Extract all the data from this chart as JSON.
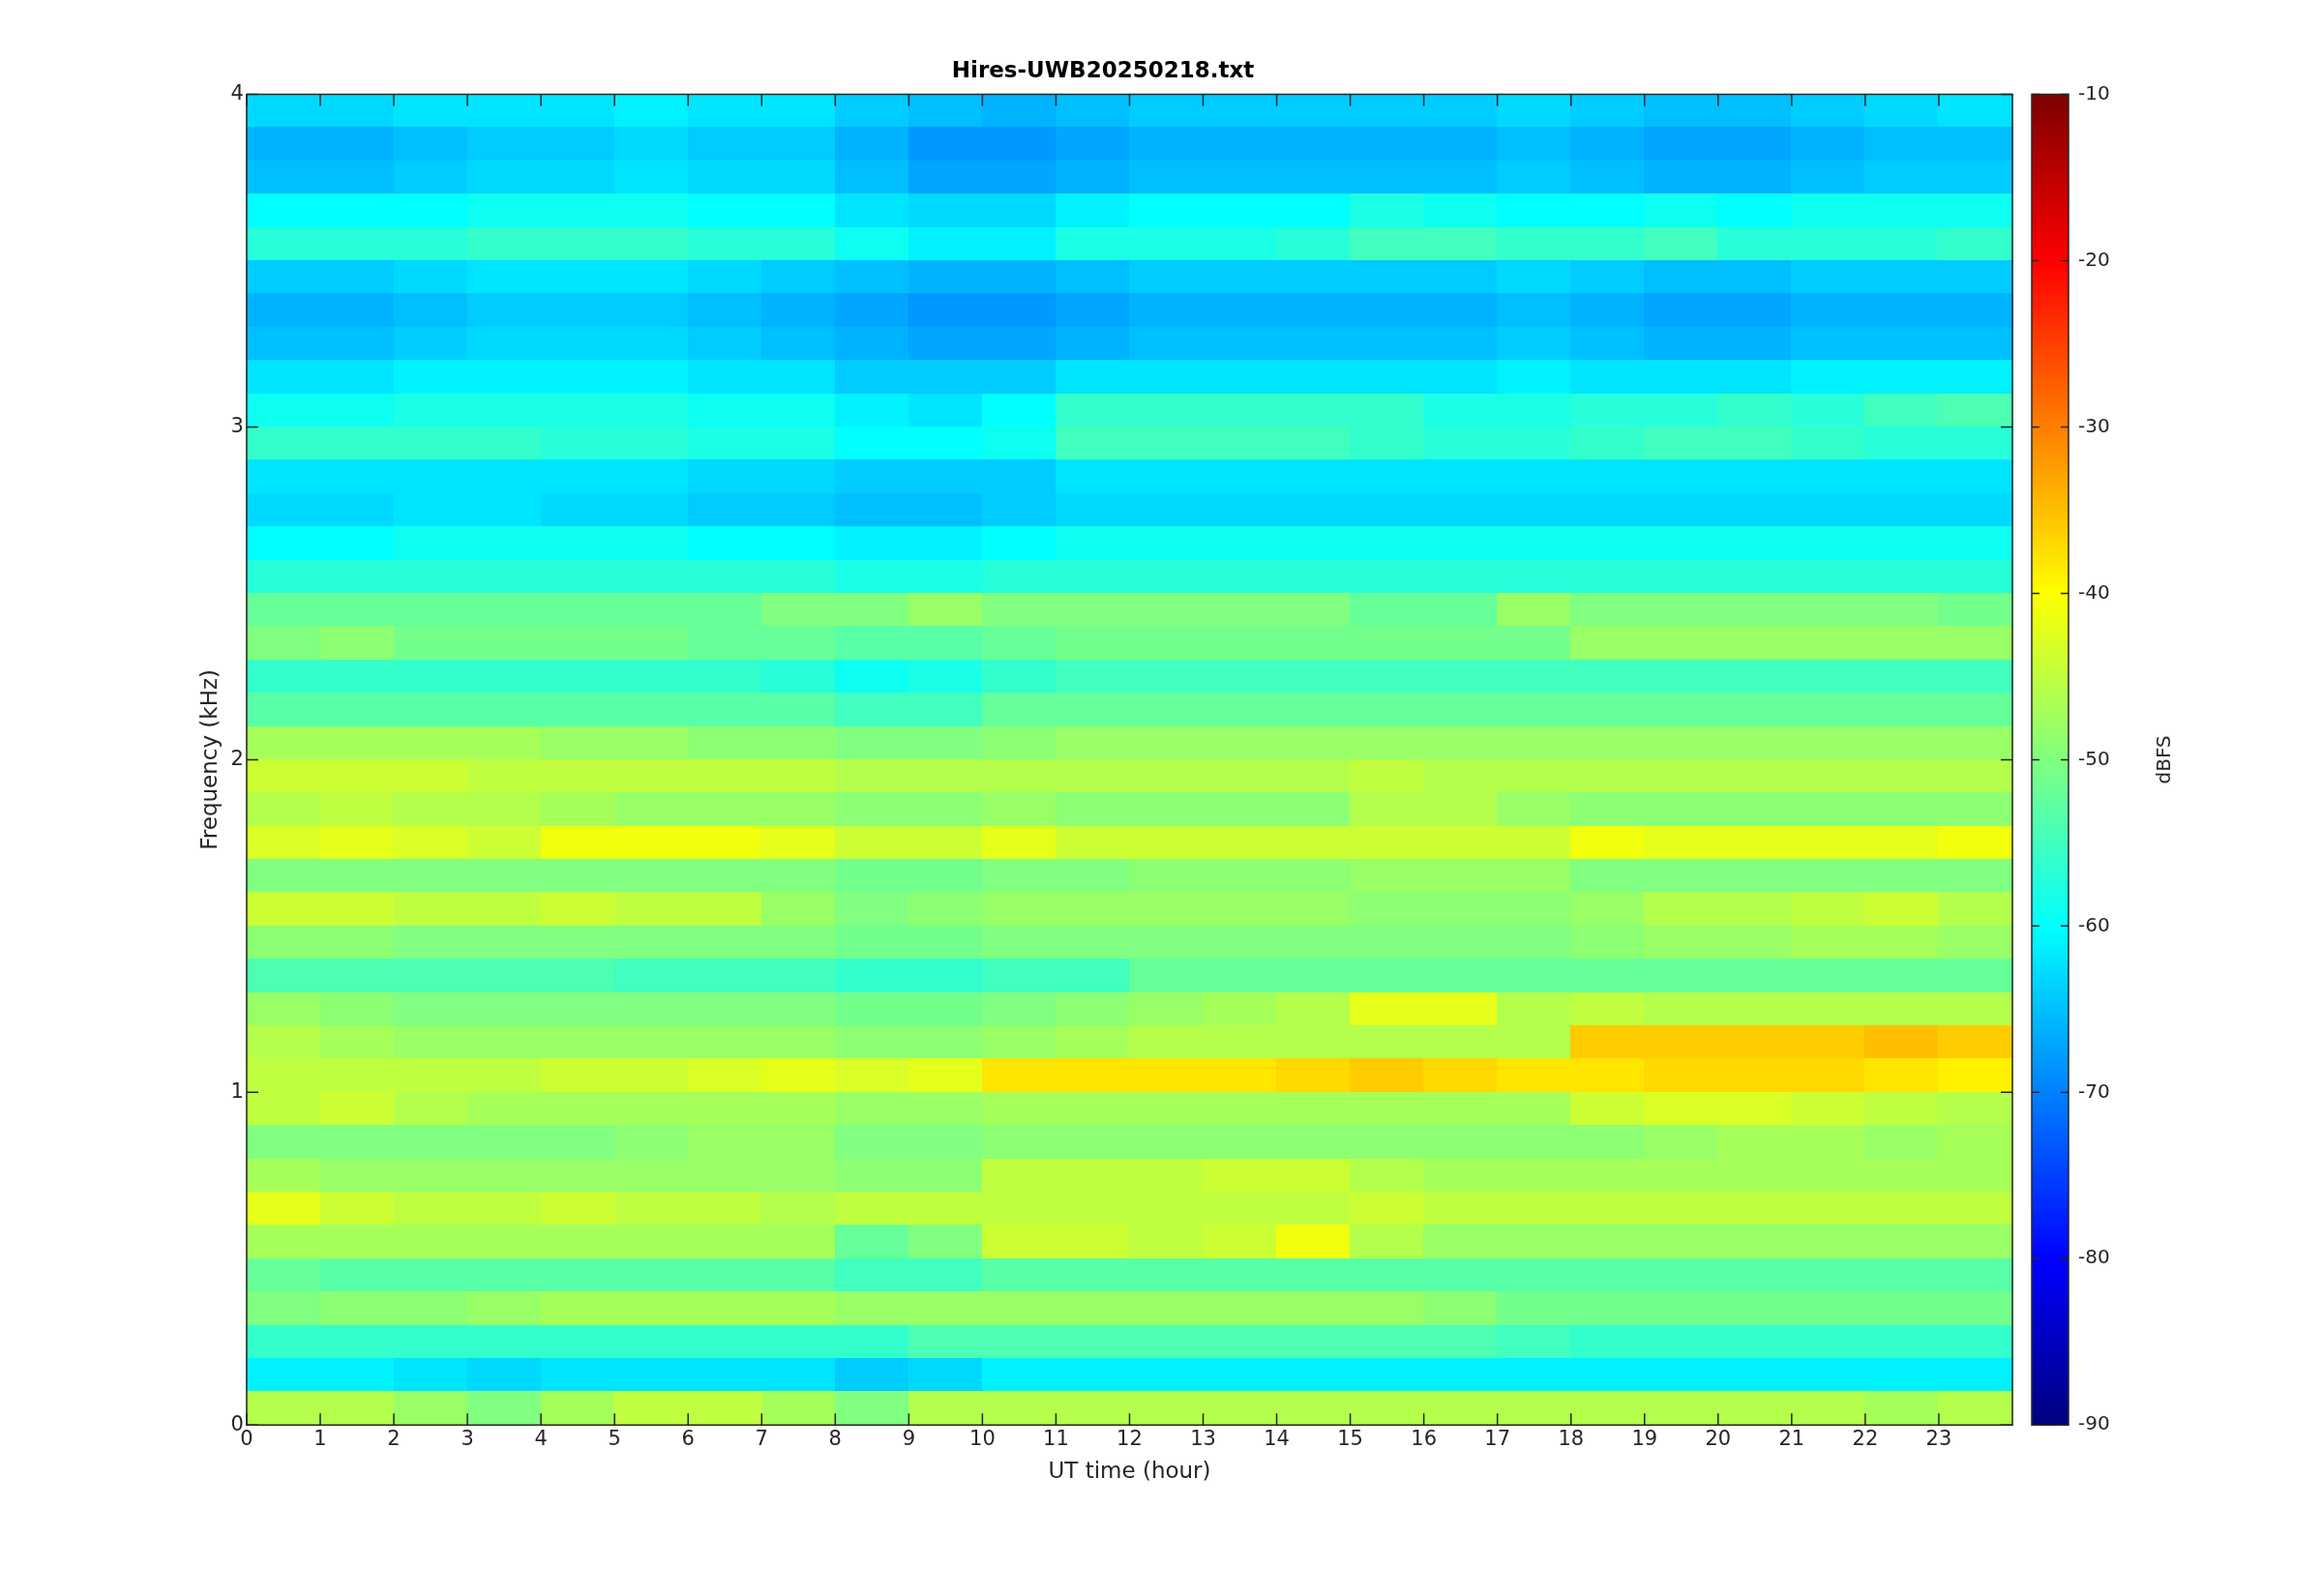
{
  "chart_data": {
    "type": "heatmap",
    "title": "Hires-UWB20250218.txt",
    "xlabel": "UT time (hour)",
    "ylabel": "Frequency (kHz)",
    "clabel": "dBFS",
    "xlim": [
      0,
      24
    ],
    "xticks": [
      0,
      1,
      2,
      3,
      4,
      5,
      6,
      7,
      8,
      9,
      10,
      11,
      12,
      13,
      14,
      15,
      16,
      17,
      18,
      19,
      20,
      21,
      22,
      23
    ],
    "ylim": [
      0,
      4
    ],
    "yticks": [
      0,
      1,
      2,
      3,
      4
    ],
    "clim": [
      -90,
      -10
    ],
    "cticks": [
      -90,
      -80,
      -70,
      -60,
      -50,
      -40,
      -30,
      -20,
      -10
    ],
    "cells": [
      [
        -63,
        -63,
        -62,
        -62,
        -62,
        -61,
        -62,
        -62,
        -64,
        -65,
        -66,
        -65,
        -64,
        -64,
        -64,
        -64,
        -64,
        -63,
        -64,
        -65,
        -65,
        -64,
        -63,
        -62
      ],
      [
        -66,
        -66,
        -65,
        -64,
        -64,
        -63,
        -64,
        -64,
        -66,
        -68,
        -68,
        -67,
        -66,
        -66,
        -66,
        -66,
        -66,
        -65,
        -66,
        -67,
        -67,
        -66,
        -65,
        -65
      ],
      [
        -65,
        -65,
        -64,
        -63,
        -63,
        -62,
        -63,
        -63,
        -65,
        -67,
        -67,
        -66,
        -65,
        -65,
        -65,
        -65,
        -65,
        -64,
        -65,
        -66,
        -66,
        -65,
        -64,
        -64
      ],
      [
        -60,
        -60,
        -60,
        -59,
        -59,
        -59,
        -60,
        -60,
        -62,
        -63,
        -63,
        -61,
        -60,
        -60,
        -60,
        -58,
        -59,
        -60,
        -60,
        -59,
        -60,
        -59,
        -59,
        -59
      ],
      [
        -57,
        -57,
        -57,
        -56,
        -56,
        -56,
        -57,
        -57,
        -59,
        -61,
        -61,
        -58,
        -58,
        -58,
        -57,
        -55,
        -55,
        -56,
        -56,
        -55,
        -57,
        -57,
        -57,
        -56
      ],
      [
        -64,
        -64,
        -63,
        -62,
        -62,
        -62,
        -63,
        -64,
        -65,
        -66,
        -66,
        -65,
        -64,
        -64,
        -64,
        -64,
        -64,
        -63,
        -64,
        -65,
        -65,
        -64,
        -64,
        -64
      ],
      [
        -66,
        -66,
        -65,
        -64,
        -64,
        -64,
        -65,
        -66,
        -67,
        -68,
        -68,
        -67,
        -66,
        -66,
        -66,
        -66,
        -66,
        -65,
        -66,
        -67,
        -67,
        -66,
        -66,
        -66
      ],
      [
        -65,
        -65,
        -64,
        -63,
        -63,
        -63,
        -64,
        -65,
        -66,
        -67,
        -67,
        -66,
        -65,
        -65,
        -65,
        -65,
        -65,
        -64,
        -65,
        -66,
        -66,
        -65,
        -65,
        -65
      ],
      [
        -62,
        -62,
        -61,
        -61,
        -61,
        -61,
        -62,
        -62,
        -64,
        -64,
        -64,
        -62,
        -62,
        -62,
        -62,
        -62,
        -62,
        -61,
        -62,
        -62,
        -62,
        -61,
        -61,
        -61
      ],
      [
        -59,
        -59,
        -58,
        -58,
        -58,
        -58,
        -59,
        -59,
        -61,
        -62,
        -60,
        -56,
        -56,
        -56,
        -56,
        -56,
        -58,
        -58,
        -57,
        -57,
        -56,
        -57,
        -55,
        -54
      ],
      [
        -56,
        -56,
        -56,
        -56,
        -57,
        -57,
        -58,
        -58,
        -60,
        -60,
        -59,
        -55,
        -55,
        -55,
        -55,
        -56,
        -57,
        -57,
        -56,
        -55,
        -55,
        -56,
        -57,
        -57
      ],
      [
        -62,
        -62,
        -62,
        -62,
        -62,
        -62,
        -63,
        -63,
        -64,
        -64,
        -64,
        -62,
        -62,
        -62,
        -62,
        -62,
        -62,
        -62,
        -62,
        -62,
        -62,
        -62,
        -62,
        -62
      ],
      [
        -63,
        -63,
        -62,
        -62,
        -63,
        -63,
        -64,
        -64,
        -65,
        -65,
        -64,
        -63,
        -63,
        -63,
        -63,
        -63,
        -63,
        -63,
        -63,
        -63,
        -63,
        -63,
        -63,
        -63
      ],
      [
        -60,
        -60,
        -59,
        -59,
        -59,
        -59,
        -60,
        -60,
        -61,
        -61,
        -60,
        -59,
        -59,
        -59,
        -59,
        -59,
        -59,
        -59,
        -59,
        -59,
        -59,
        -59,
        -59,
        -59
      ],
      [
        -57,
        -57,
        -57,
        -57,
        -57,
        -57,
        -57,
        -57,
        -58,
        -58,
        -57,
        -57,
        -57,
        -57,
        -57,
        -57,
        -57,
        -57,
        -57,
        -57,
        -57,
        -57,
        -57,
        -57
      ],
      [
        -52,
        -52,
        -52,
        -52,
        -52,
        -52,
        -52,
        -50,
        -50,
        -48,
        -50,
        -50,
        -50,
        -50,
        -50,
        -52,
        -52,
        -48,
        -50,
        -50,
        -50,
        -50,
        -50,
        -51
      ],
      [
        -50,
        -49,
        -51,
        -51,
        -51,
        -51,
        -52,
        -52,
        -53,
        -53,
        -52,
        -51,
        -51,
        -51,
        -51,
        -51,
        -51,
        -51,
        -48,
        -48,
        -48,
        -48,
        -48,
        -48
      ],
      [
        -56,
        -56,
        -56,
        -56,
        -56,
        -56,
        -56,
        -57,
        -59,
        -58,
        -56,
        -55,
        -55,
        -55,
        -55,
        -55,
        -55,
        -55,
        -55,
        -55,
        -55,
        -55,
        -55,
        -55
      ],
      [
        -53,
        -53,
        -53,
        -53,
        -53,
        -53,
        -53,
        -53,
        -55,
        -55,
        -52,
        -52,
        -52,
        -52,
        -52,
        -52,
        -52,
        -52,
        -52,
        -52,
        -52,
        -52,
        -52,
        -52
      ],
      [
        -47,
        -47,
        -47,
        -47,
        -48,
        -48,
        -49,
        -49,
        -50,
        -50,
        -49,
        -48,
        -48,
        -48,
        -48,
        -48,
        -48,
        -48,
        -48,
        -48,
        -48,
        -48,
        -48,
        -48
      ],
      [
        -44,
        -44,
        -44,
        -45,
        -45,
        -45,
        -45,
        -45,
        -46,
        -46,
        -46,
        -46,
        -46,
        -46,
        -46,
        -45,
        -46,
        -46,
        -46,
        -46,
        -46,
        -46,
        -46,
        -46
      ],
      [
        -46,
        -45,
        -46,
        -46,
        -47,
        -48,
        -48,
        -48,
        -49,
        -49,
        -48,
        -49,
        -49,
        -49,
        -49,
        -46,
        -46,
        -48,
        -49,
        -49,
        -49,
        -49,
        -49,
        -49
      ],
      [
        -43,
        -42,
        -43,
        -44,
        -41,
        -41,
        -41,
        -42,
        -44,
        -44,
        -42,
        -44,
        -44,
        -44,
        -44,
        -44,
        -44,
        -44,
        -41,
        -42,
        -42,
        -42,
        -42,
        -41
      ],
      [
        -50,
        -50,
        -50,
        -50,
        -50,
        -50,
        -50,
        -50,
        -51,
        -51,
        -50,
        -50,
        -49,
        -49,
        -49,
        -48,
        -48,
        -48,
        -50,
        -50,
        -50,
        -50,
        -50,
        -50
      ],
      [
        -44,
        -44,
        -45,
        -45,
        -44,
        -45,
        -45,
        -48,
        -50,
        -49,
        -48,
        -48,
        -48,
        -48,
        -48,
        -49,
        -49,
        -49,
        -48,
        -46,
        -46,
        -45,
        -44,
        -46
      ],
      [
        -49,
        -49,
        -50,
        -50,
        -50,
        -50,
        -50,
        -50,
        -51,
        -51,
        -50,
        -50,
        -50,
        -50,
        -50,
        -50,
        -50,
        -50,
        -49,
        -48,
        -48,
        -47,
        -47,
        -48
      ],
      [
        -54,
        -54,
        -54,
        -54,
        -54,
        -55,
        -55,
        -55,
        -56,
        -56,
        -55,
        -55,
        -52,
        -52,
        -52,
        -52,
        -52,
        -52,
        -52,
        -52,
        -52,
        -52,
        -52,
        -52
      ],
      [
        -48,
        -49,
        -50,
        -50,
        -50,
        -50,
        -50,
        -50,
        -51,
        -51,
        -50,
        -49,
        -48,
        -47,
        -46,
        -42,
        -42,
        -46,
        -45,
        -46,
        -46,
        -46,
        -46,
        -46
      ],
      [
        -46,
        -47,
        -48,
        -48,
        -48,
        -48,
        -48,
        -48,
        -49,
        -49,
        -48,
        -47,
        -46,
        -46,
        -46,
        -46,
        -46,
        -46,
        -36,
        -36,
        -36,
        -36,
        -35,
        -36
      ],
      [
        -45,
        -45,
        -45,
        -45,
        -44,
        -44,
        -43,
        -42,
        -43,
        -42,
        -38,
        -38,
        -38,
        -38,
        -37,
        -36,
        -37,
        -38,
        -38,
        -37,
        -37,
        -37,
        -38,
        -39
      ],
      [
        -45,
        -44,
        -46,
        -47,
        -47,
        -47,
        -47,
        -47,
        -48,
        -48,
        -47,
        -47,
        -47,
        -47,
        -47,
        -47,
        -47,
        -47,
        -44,
        -43,
        -43,
        -44,
        -45,
        -46
      ],
      [
        -50,
        -50,
        -50,
        -50,
        -50,
        -49,
        -48,
        -48,
        -50,
        -50,
        -49,
        -49,
        -49,
        -49,
        -49,
        -49,
        -49,
        -49,
        -49,
        -48,
        -47,
        -47,
        -48,
        -47
      ],
      [
        -47,
        -48,
        -48,
        -48,
        -48,
        -48,
        -48,
        -48,
        -49,
        -49,
        -45,
        -45,
        -45,
        -44,
        -44,
        -46,
        -47,
        -47,
        -47,
        -47,
        -47,
        -47,
        -47,
        -47
      ],
      [
        -42,
        -44,
        -45,
        -45,
        -44,
        -45,
        -45,
        -46,
        -45,
        -45,
        -45,
        -45,
        -45,
        -45,
        -45,
        -44,
        -45,
        -45,
        -45,
        -45,
        -45,
        -45,
        -45,
        -45
      ],
      [
        -47,
        -47,
        -47,
        -47,
        -47,
        -47,
        -47,
        -47,
        -52,
        -50,
        -44,
        -44,
        -45,
        -44,
        -41,
        -46,
        -48,
        -48,
        -48,
        -48,
        -48,
        -48,
        -48,
        -48
      ],
      [
        -52,
        -53,
        -53,
        -53,
        -53,
        -53,
        -53,
        -53,
        -55,
        -55,
        -53,
        -53,
        -53,
        -53,
        -53,
        -53,
        -53,
        -53,
        -53,
        -53,
        -53,
        -53,
        -53,
        -53
      ],
      [
        -50,
        -49,
        -49,
        -48,
        -47,
        -47,
        -47,
        -47,
        -48,
        -48,
        -48,
        -48,
        -48,
        -48,
        -48,
        -48,
        -49,
        -51,
        -51,
        -51,
        -51,
        -51,
        -51,
        -51
      ],
      [
        -56,
        -56,
        -56,
        -56,
        -56,
        -56,
        -56,
        -56,
        -56,
        -54,
        -54,
        -54,
        -54,
        -54,
        -54,
        -54,
        -54,
        -55,
        -56,
        -56,
        -56,
        -56,
        -56,
        -56
      ],
      [
        -61,
        -61,
        -62,
        -63,
        -62,
        -62,
        -62,
        -62,
        -64,
        -63,
        -61,
        -61,
        -61,
        -61,
        -61,
        -61,
        -61,
        -61,
        -61,
        -61,
        -61,
        -61,
        -61,
        -61
      ],
      [
        -46,
        -46,
        -48,
        -50,
        -47,
        -45,
        -45,
        -47,
        -50,
        -46,
        -46,
        -46,
        -46,
        -46,
        -46,
        -46,
        -46,
        -46,
        -46,
        -46,
        -46,
        -46,
        -47,
        -46
      ]
    ]
  }
}
